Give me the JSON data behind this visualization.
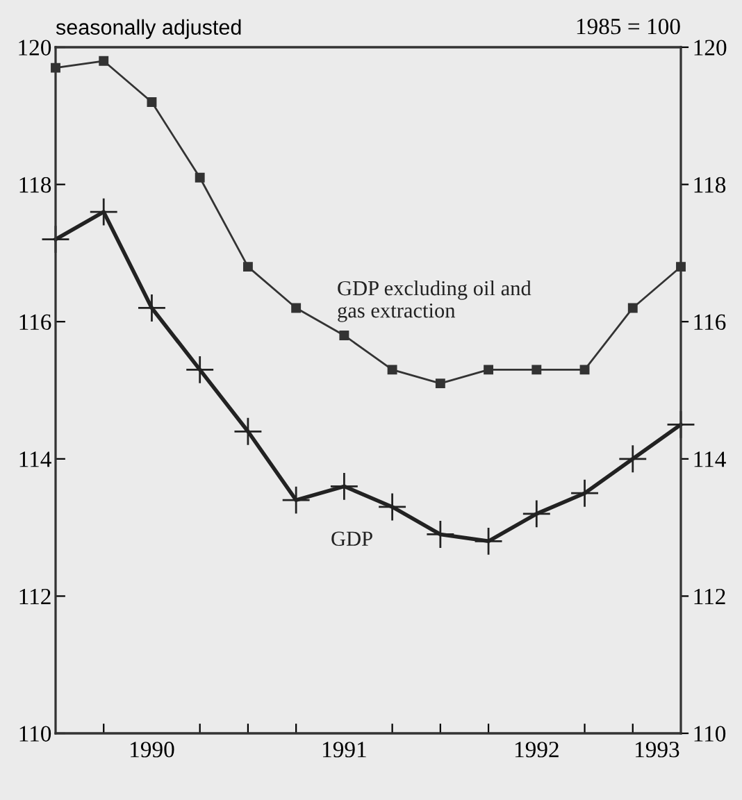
{
  "chart_data": {
    "type": "line",
    "x": [
      1990.0,
      1990.25,
      1990.5,
      1990.75,
      1991.0,
      1991.25,
      1991.5,
      1991.75,
      1992.0,
      1992.25,
      1992.5,
      1992.75,
      1993.0,
      1993.25
    ],
    "series": [
      {
        "name": "GDP excluding oil and\ngas extraction",
        "color": "#333333",
        "marker": "square",
        "values": [
          119.7,
          119.8,
          119.2,
          118.1,
          116.8,
          116.2,
          115.8,
          115.3,
          115.1,
          115.3,
          115.3,
          115.3,
          116.2,
          116.8
        ]
      },
      {
        "name": "GDP",
        "color": "#222222",
        "marker": "cross",
        "values": [
          117.2,
          117.6,
          116.2,
          115.3,
          114.4,
          113.4,
          113.6,
          113.3,
          112.9,
          112.8,
          113.2,
          113.5,
          114.0,
          114.5
        ]
      }
    ],
    "xlim": [
      1990.0,
      1993.25
    ],
    "xticks": [
      {
        "value": 1990.25,
        "label": null
      },
      {
        "value": 1990.5,
        "label": "1990"
      },
      {
        "value": 1990.75,
        "label": null
      },
      {
        "value": 1991.0,
        "label": null
      },
      {
        "value": 1991.25,
        "label": null
      },
      {
        "value": 1991.5,
        "label": "1991"
      },
      {
        "value": 1991.75,
        "label": null
      },
      {
        "value": 1992.0,
        "label": null
      },
      {
        "value": 1992.25,
        "label": null
      },
      {
        "value": 1992.5,
        "label": "1992"
      },
      {
        "value": 1992.75,
        "label": null
      },
      {
        "value": 1993.0,
        "label": null
      },
      {
        "value": 1993.125,
        "label": "1993"
      }
    ],
    "ylim": [
      110,
      120
    ],
    "yticks": [
      110,
      112,
      114,
      116,
      118,
      120
    ],
    "y2lim": [
      110,
      120
    ],
    "y2ticks": [
      110,
      112,
      114,
      116,
      118,
      120
    ],
    "annotations": [
      "seasonally adjusted",
      "1985 = 100"
    ],
    "grid": false,
    "legend": false,
    "line_style": "solid"
  }
}
